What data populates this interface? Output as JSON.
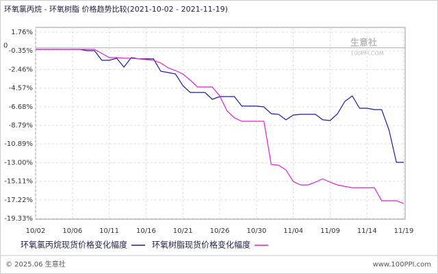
{
  "chart_data": {
    "type": "line",
    "title": "环氧氯丙烷 - 环氧树脂 价格趋势比较(2021-10-02 - 2021-11-19)",
    "categories": [
      "10/02",
      null,
      null,
      null,
      null,
      "10/06",
      null,
      null,
      null,
      null,
      "10/11",
      null,
      null,
      null,
      null,
      "10/16",
      null,
      null,
      null,
      null,
      "10/21",
      null,
      null,
      null,
      null,
      "10/26",
      null,
      null,
      null,
      null,
      "10/30",
      null,
      null,
      null,
      null,
      "11/04",
      null,
      null,
      null,
      null,
      "11/09",
      null,
      null,
      null,
      null,
      "11/14",
      null,
      null,
      null,
      null,
      "11/19"
    ],
    "series": [
      {
        "name": "环氧氯丙烷现货价格变化幅度",
        "color": "#1a1aa8",
        "values": [
          -0.18,
          -0.18,
          -0.18,
          -0.18,
          -0.18,
          -0.18,
          -0.18,
          -0.33,
          -0.33,
          -1.42,
          -1.42,
          -1.19,
          -2.19,
          -1.11,
          -1.26,
          -1.26,
          -1.26,
          -2.66,
          -2.81,
          -2.97,
          -4.29,
          -5.06,
          -5.06,
          -5.06,
          -5.84,
          -5.53,
          -5.53,
          -5.53,
          -6.61,
          -6.61,
          -6.61,
          -6.69,
          -7.47,
          -7.54,
          -8.16,
          -7.62,
          -7.54,
          -7.54,
          -7.54,
          -8.16,
          -8.24,
          -7.47,
          -6.07,
          -5.45,
          -6.85,
          -6.85,
          -7.0,
          -7.0,
          -9.33,
          -12.97,
          -12.97
        ]
      },
      {
        "name": "环氧树脂现货价格变化幅度",
        "color": "#e020d0",
        "values": [
          -0.18,
          -0.18,
          -0.18,
          -0.18,
          -0.18,
          -0.18,
          -0.18,
          -0.18,
          -0.18,
          -0.64,
          -1.11,
          -1.11,
          -1.19,
          -1.19,
          -1.26,
          -1.34,
          -1.42,
          -1.73,
          -2.27,
          -2.58,
          -2.97,
          -3.67,
          -4.44,
          -4.44,
          -4.44,
          -5.45,
          -7.16,
          -7.93,
          -8.32,
          -8.32,
          -8.32,
          -8.32,
          -13.21,
          -13.29,
          -13.83,
          -15.15,
          -15.53,
          -15.53,
          -15.22,
          -14.83,
          -15.22,
          -15.53,
          -15.69,
          -15.84,
          -15.84,
          -15.84,
          -15.84,
          -17.32,
          -17.32,
          -17.32,
          -17.63
        ]
      }
    ],
    "ylim": [
      -19.33,
      1.76
    ],
    "yticks": [
      {
        "value": 1.76,
        "label": "1.76%"
      },
      0,
      {
        "value": -0.35,
        "label": "-0.35%"
      },
      {
        "value": -2.46,
        "label": "-2.46%"
      },
      {
        "value": -4.57,
        "label": "-4.57%"
      },
      {
        "value": -6.68,
        "label": "-6.68%"
      },
      {
        "value": -8.79,
        "label": "-8.79%"
      },
      {
        "value": -10.89,
        "label": "-10.89%"
      },
      {
        "value": -13.0,
        "label": "-13.00%"
      },
      {
        "value": -15.11,
        "label": "-15.11%"
      },
      {
        "value": -17.22,
        "label": "-17.22%"
      },
      {
        "value": -19.33,
        "label": "-19.33%"
      }
    ],
    "grid": true
  },
  "watermark": {
    "name": "生意社",
    "url": "100PPI.COM"
  },
  "footer": {
    "copyright": "© 2025.06 生意社",
    "site": "www.100PPI.com"
  }
}
